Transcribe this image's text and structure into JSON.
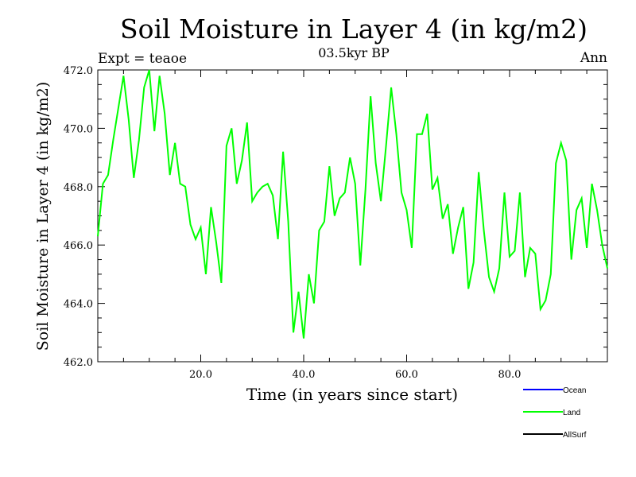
{
  "chart_data": {
    "type": "line",
    "title": "Soil Moisture in Layer 4 (in kg/m2)",
    "subtitle": "03.5kyr BP",
    "left_annotation": "Expt = teaoe",
    "right_annotation": "Ann",
    "xlabel": "Time (in years since start)",
    "ylabel": "Soil Moisture in Layer 4 (in kg/m2)",
    "xlim": [
      0,
      99
    ],
    "ylim": [
      462.0,
      472.0
    ],
    "xticks": [
      20,
      40,
      60,
      80
    ],
    "xtick_labels": [
      "20.0",
      "40.0",
      "60.0",
      "80.0"
    ],
    "yticks": [
      462,
      464,
      466,
      468,
      470,
      472
    ],
    "ytick_labels": [
      "462.0",
      "464.0",
      "466.0",
      "468.0",
      "470.0",
      "472.0"
    ],
    "legend": [
      {
        "label": "Ocean",
        "color": "#0000ff"
      },
      {
        "label": "Land",
        "color": "#00ff00"
      },
      {
        "label": "AllSurf",
        "color": "#000000"
      }
    ],
    "series": [
      {
        "name": "Land",
        "color": "#00ff00",
        "x": [
          0,
          1,
          2,
          3,
          4,
          5,
          6,
          7,
          8,
          9,
          10,
          11,
          12,
          13,
          14,
          15,
          16,
          17,
          18,
          19,
          20,
          21,
          22,
          23,
          24,
          25,
          26,
          27,
          28,
          29,
          30,
          31,
          32,
          33,
          34,
          35,
          36,
          37,
          38,
          39,
          40,
          41,
          42,
          43,
          44,
          45,
          46,
          47,
          48,
          49,
          50,
          51,
          52,
          53,
          54,
          55,
          56,
          57,
          58,
          59,
          60,
          61,
          62,
          63,
          64,
          65,
          66,
          67,
          68,
          69,
          70,
          71,
          72,
          73,
          74,
          75,
          76,
          77,
          78,
          79,
          80,
          81,
          82,
          83,
          84,
          85,
          86,
          87,
          88,
          89,
          90,
          91,
          92,
          93,
          94,
          95,
          96,
          97,
          98,
          99
        ],
        "values": [
          466.3,
          468.1,
          468.4,
          469.6,
          470.7,
          471.8,
          470.3,
          468.3,
          469.6,
          471.4,
          472.0,
          469.9,
          471.8,
          470.5,
          468.4,
          469.5,
          468.1,
          468.0,
          466.7,
          466.2,
          466.6,
          465.0,
          467.3,
          466.1,
          464.7,
          469.4,
          470.0,
          468.1,
          468.9,
          470.2,
          467.5,
          467.8,
          468.0,
          468.1,
          467.7,
          466.2,
          469.2,
          466.8,
          463.0,
          464.4,
          462.8,
          465.0,
          464.0,
          466.5,
          466.8,
          468.7,
          467.0,
          467.6,
          467.8,
          469.0,
          468.1,
          465.3,
          467.9,
          471.1,
          468.8,
          467.5,
          469.4,
          471.4,
          469.8,
          467.8,
          467.2,
          465.9,
          469.8,
          469.8,
          470.5,
          467.9,
          468.3,
          466.9,
          467.4,
          465.7,
          466.6,
          467.3,
          464.5,
          465.4,
          468.5,
          466.5,
          464.9,
          464.4,
          465.2,
          467.8,
          465.6,
          465.8,
          467.8,
          464.9,
          465.9,
          465.7,
          463.8,
          464.1,
          465.0,
          468.8,
          469.5,
          468.9,
          465.5,
          467.2,
          467.6,
          465.9,
          468.1,
          467.2,
          466.0,
          465.2
        ]
      }
    ]
  }
}
